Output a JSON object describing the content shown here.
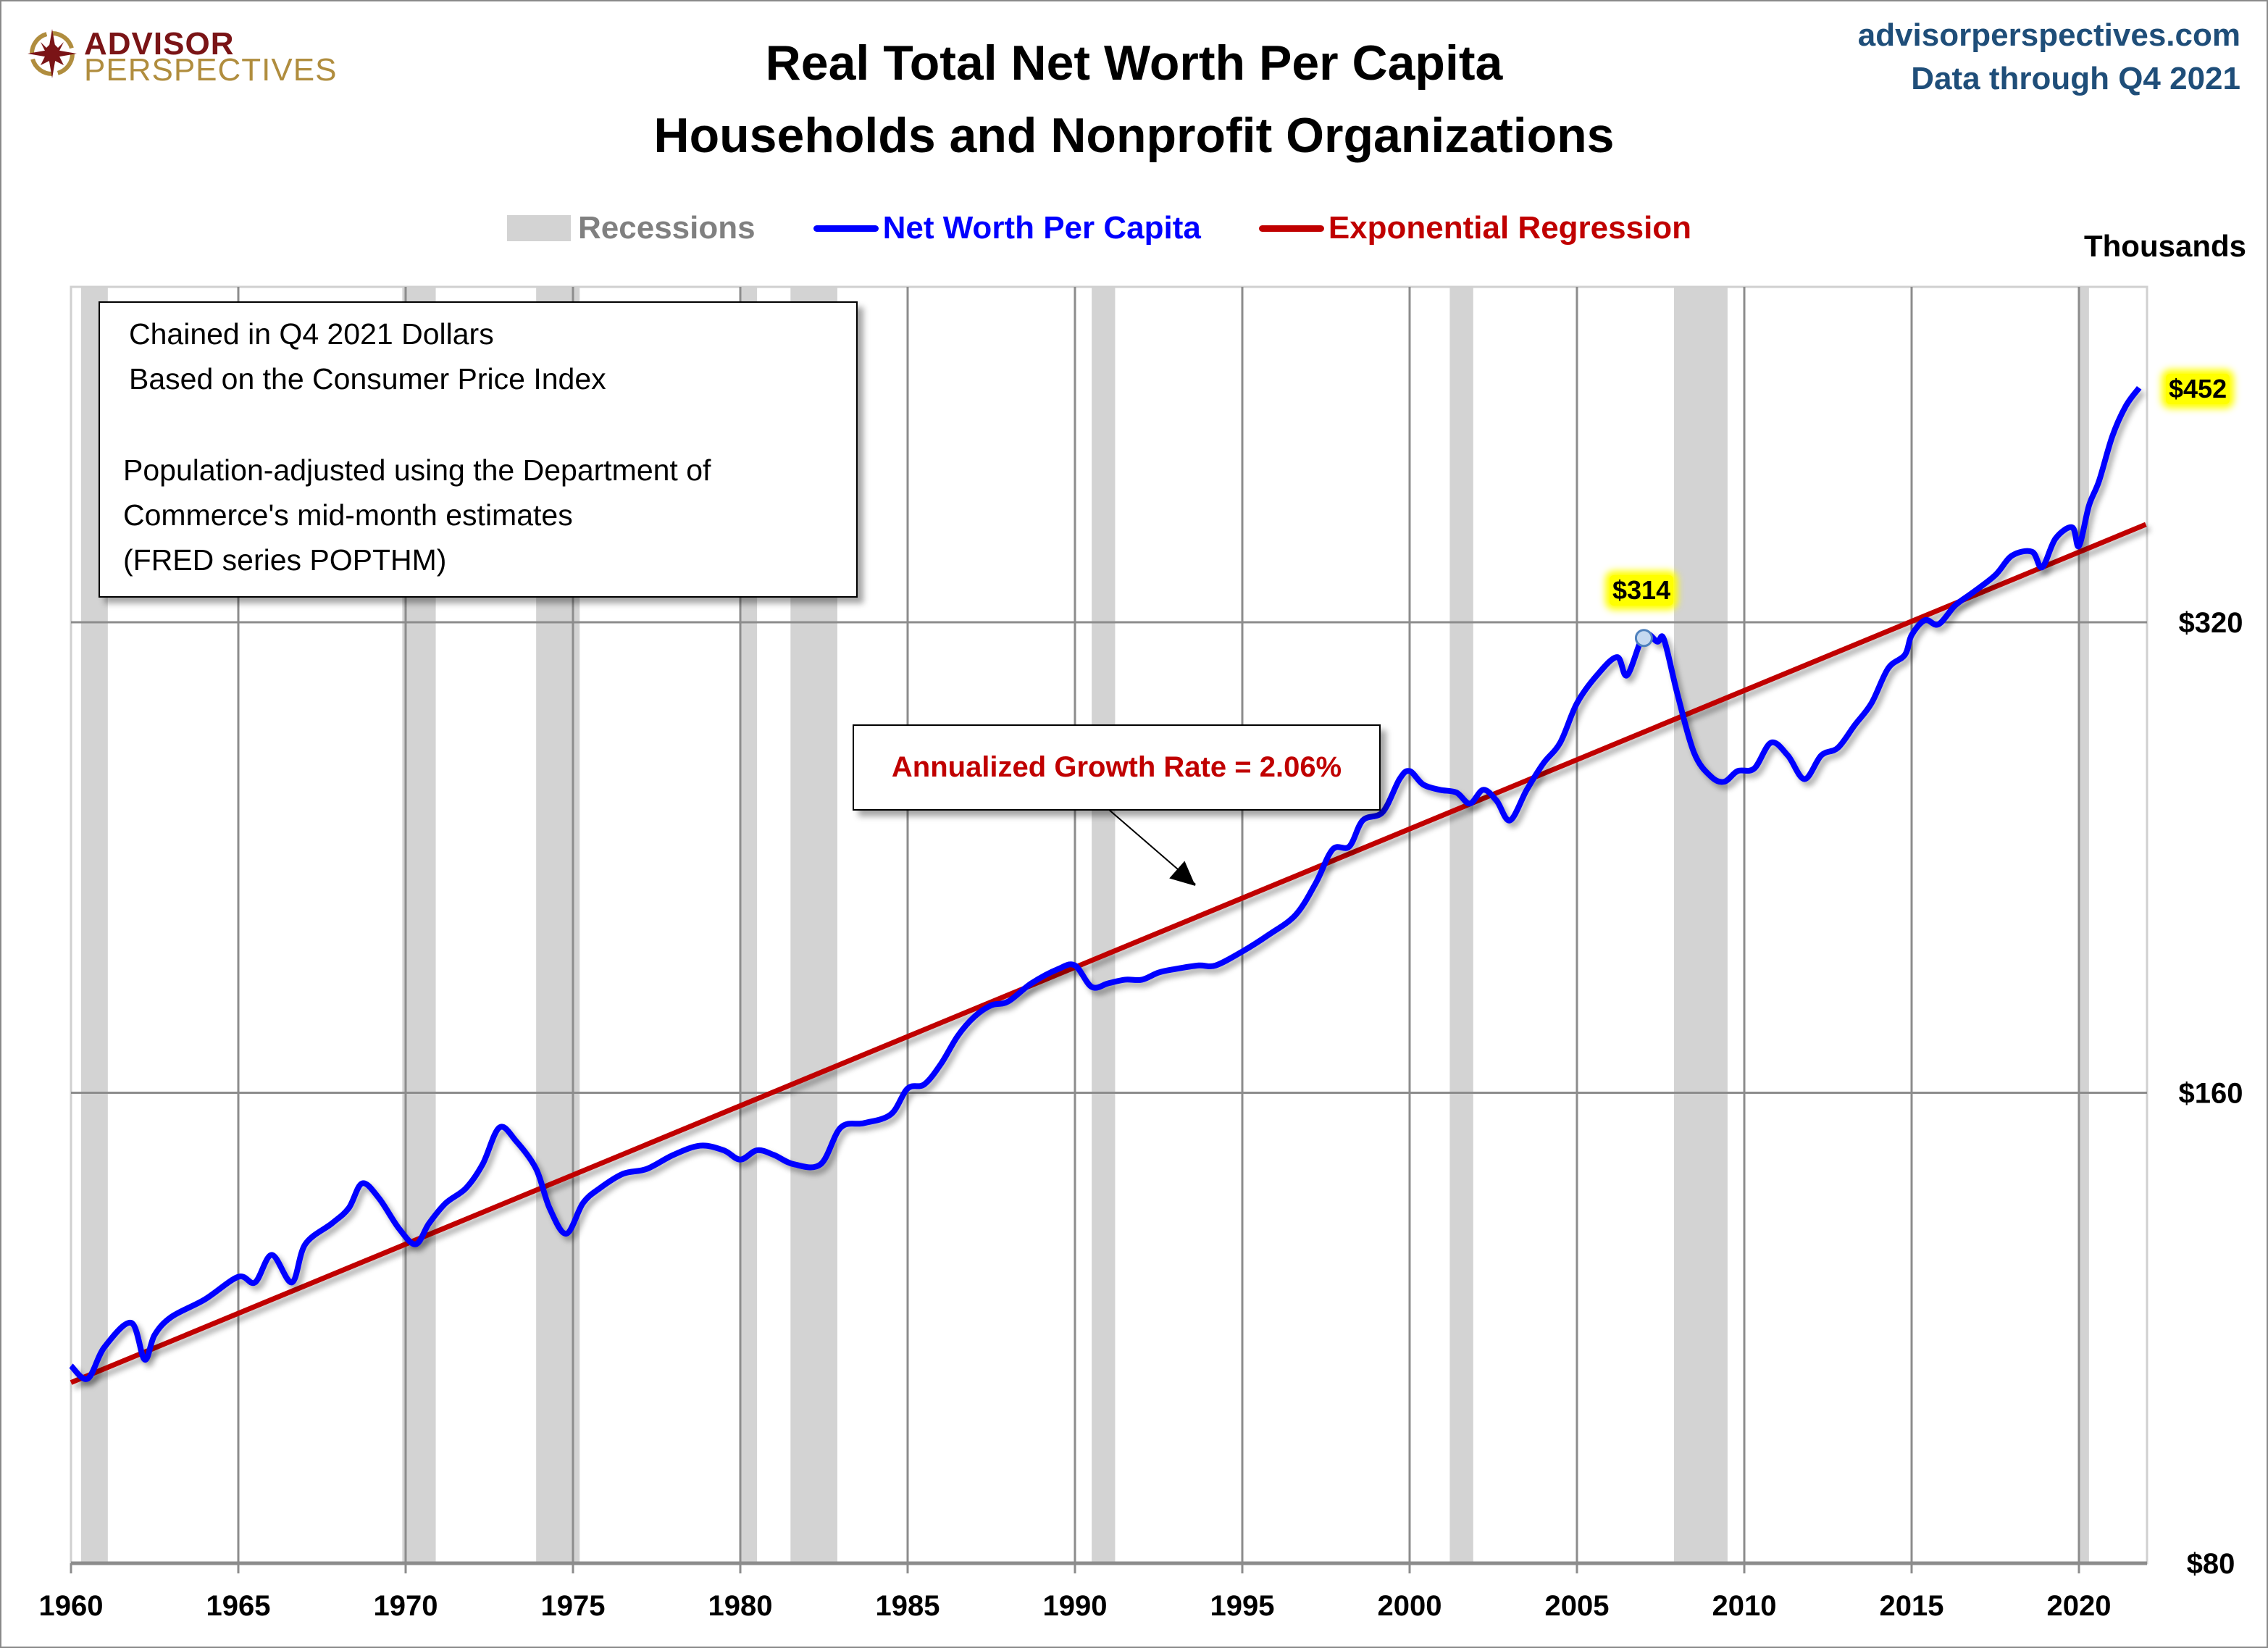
{
  "branding": {
    "logo_top": "ADVISOR",
    "logo_bottom": "PERSPECTIVES",
    "logo_colors": {
      "primary": "#7a1416",
      "secondary": "#b08d3e"
    },
    "site": "advisorperspectives.com",
    "data_through": "Data through Q4 2021"
  },
  "note_box": {
    "lines": [
      "Chained in Q4 2021 Dollars",
      "Based on the Consumer Price Index",
      "Population-adjusted using the Department of",
      "Commerce's mid-month estimates",
      "(FRED series POPTHM)"
    ]
  },
  "chart_data": {
    "type": "line",
    "title": "Real Total Net Worth Per Capita",
    "subtitle": "Households and Nonprofit Organizations",
    "xlabel": "",
    "ylabel": "Thousands",
    "y_scale": "log",
    "ylim": [
      80,
      452
    ],
    "xlim": [
      1960,
      2022
    ],
    "grid": true,
    "legend_position": "top",
    "x_ticks": [
      "1960",
      "1965",
      "1970",
      "1975",
      "1980",
      "1985",
      "1990",
      "1995",
      "2000",
      "2005",
      "2010",
      "2015",
      "2020"
    ],
    "y_ticks": [
      {
        "value": 80,
        "label": "$80"
      },
      {
        "value": 160,
        "label": "$160"
      },
      {
        "value": 320,
        "label": "$320"
      }
    ],
    "legend": [
      {
        "name": "Recessions",
        "kind": "box",
        "color": "#d3d3d3",
        "text_color": "#808080"
      },
      {
        "name": "Net Worth Per Capita",
        "kind": "line",
        "color": "#0000ff",
        "text_color": "#0000ff"
      },
      {
        "name": "Exponential Regression",
        "kind": "line",
        "color": "#c00000",
        "text_color": "#c00000"
      }
    ],
    "recessions": [
      [
        1960.3,
        1961.1
      ],
      [
        1969.9,
        1970.9
      ],
      [
        1973.9,
        1975.2
      ],
      [
        1980.0,
        1980.5
      ],
      [
        1981.5,
        1982.9
      ],
      [
        1990.5,
        1991.2
      ],
      [
        2001.2,
        2001.9
      ],
      [
        2007.9,
        2009.5
      ],
      [
        2020.0,
        2020.3
      ]
    ],
    "series": [
      {
        "name": "Net Worth Per Capita",
        "color": "#0000ff",
        "points": [
          [
            1960.0,
            107
          ],
          [
            1960.5,
            105
          ],
          [
            1961.0,
            110
          ],
          [
            1961.8,
            114
          ],
          [
            1962.2,
            108
          ],
          [
            1962.5,
            112
          ],
          [
            1963.0,
            115
          ],
          [
            1964.0,
            118
          ],
          [
            1965.0,
            122
          ],
          [
            1965.5,
            121
          ],
          [
            1966.0,
            126
          ],
          [
            1966.6,
            121
          ],
          [
            1967.0,
            128
          ],
          [
            1967.8,
            132
          ],
          [
            1968.3,
            135
          ],
          [
            1968.7,
            140
          ],
          [
            1969.2,
            137
          ],
          [
            1969.8,
            131
          ],
          [
            1970.3,
            128
          ],
          [
            1970.7,
            132
          ],
          [
            1971.2,
            136
          ],
          [
            1971.8,
            139
          ],
          [
            1972.3,
            144
          ],
          [
            1972.8,
            152
          ],
          [
            1973.3,
            149
          ],
          [
            1973.9,
            143
          ],
          [
            1974.3,
            135
          ],
          [
            1974.8,
            130
          ],
          [
            1975.3,
            136
          ],
          [
            1975.8,
            139
          ],
          [
            1976.5,
            142
          ],
          [
            1977.2,
            143
          ],
          [
            1978.0,
            146
          ],
          [
            1978.8,
            148
          ],
          [
            1979.5,
            147
          ],
          [
            1980.0,
            145
          ],
          [
            1980.5,
            147
          ],
          [
            1981.0,
            146
          ],
          [
            1981.6,
            144
          ],
          [
            1982.4,
            144
          ],
          [
            1983.0,
            152
          ],
          [
            1983.7,
            153
          ],
          [
            1984.5,
            155
          ],
          [
            1985.0,
            161
          ],
          [
            1985.5,
            162
          ],
          [
            1986.0,
            167
          ],
          [
            1986.5,
            174
          ],
          [
            1987.0,
            179
          ],
          [
            1987.5,
            182
          ],
          [
            1988.0,
            183
          ],
          [
            1988.7,
            188
          ],
          [
            1989.5,
            192
          ],
          [
            1990.0,
            193
          ],
          [
            1990.5,
            187
          ],
          [
            1991.0,
            188
          ],
          [
            1991.5,
            189
          ],
          [
            1992.0,
            189
          ],
          [
            1992.5,
            191
          ],
          [
            1993.0,
            192
          ],
          [
            1993.7,
            193
          ],
          [
            1994.2,
            193
          ],
          [
            1995.0,
            197
          ],
          [
            1995.8,
            202
          ],
          [
            1996.6,
            208
          ],
          [
            1997.2,
            218
          ],
          [
            1997.7,
            229
          ],
          [
            1998.2,
            230
          ],
          [
            1998.6,
            239
          ],
          [
            1999.2,
            242
          ],
          [
            1999.7,
            254
          ],
          [
            2000.0,
            257
          ],
          [
            2000.4,
            252
          ],
          [
            2000.9,
            250
          ],
          [
            2001.4,
            249
          ],
          [
            2001.8,
            245
          ],
          [
            2002.2,
            250
          ],
          [
            2002.6,
            246
          ],
          [
            2003.0,
            239
          ],
          [
            2003.5,
            250
          ],
          [
            2004.0,
            260
          ],
          [
            2004.5,
            268
          ],
          [
            2005.0,
            284
          ],
          [
            2005.6,
            296
          ],
          [
            2006.2,
            304
          ],
          [
            2006.5,
            296
          ],
          [
            2007.0,
            314
          ],
          [
            2007.4,
            311
          ],
          [
            2007.6,
            312
          ],
          [
            2008.0,
            288
          ],
          [
            2008.5,
            264
          ],
          [
            2009.0,
            255
          ],
          [
            2009.4,
            253
          ],
          [
            2009.8,
            257
          ],
          [
            2010.3,
            258
          ],
          [
            2010.8,
            268
          ],
          [
            2011.3,
            263
          ],
          [
            2011.8,
            254
          ],
          [
            2012.3,
            263
          ],
          [
            2012.8,
            266
          ],
          [
            2013.3,
            275
          ],
          [
            2013.8,
            284
          ],
          [
            2014.3,
            299
          ],
          [
            2014.8,
            305
          ],
          [
            2015.0,
            314
          ],
          [
            2015.4,
            321
          ],
          [
            2015.8,
            319
          ],
          [
            2016.3,
            328
          ],
          [
            2016.8,
            334
          ],
          [
            2017.5,
            343
          ],
          [
            2018.0,
            353
          ],
          [
            2018.6,
            355
          ],
          [
            2018.9,
            347
          ],
          [
            2019.3,
            362
          ],
          [
            2019.8,
            368
          ],
          [
            2020.0,
            358
          ],
          [
            2020.3,
            380
          ],
          [
            2020.6,
            394
          ],
          [
            2021.0,
            421
          ],
          [
            2021.4,
            440
          ],
          [
            2021.8,
            452
          ]
        ]
      },
      {
        "name": "Exponential Regression",
        "color": "#c00000",
        "start": {
          "x": 1960,
          "y": 104.4
        },
        "annual_growth_rate": 0.0206,
        "end_x": 2022
      }
    ],
    "annotations": [
      {
        "text": "$314",
        "x": 2007.0,
        "y": 314,
        "style": "yellow-highlight",
        "marker": true
      },
      {
        "text": "$452",
        "x": 2021.8,
        "y": 452,
        "style": "yellow-highlight",
        "position": "right-axis"
      },
      {
        "text": "Annualized Growth Rate = 2.06%",
        "style": "boxed-callout",
        "arrow_to": {
          "x": 1993.6,
          "y": 217
        }
      }
    ]
  }
}
